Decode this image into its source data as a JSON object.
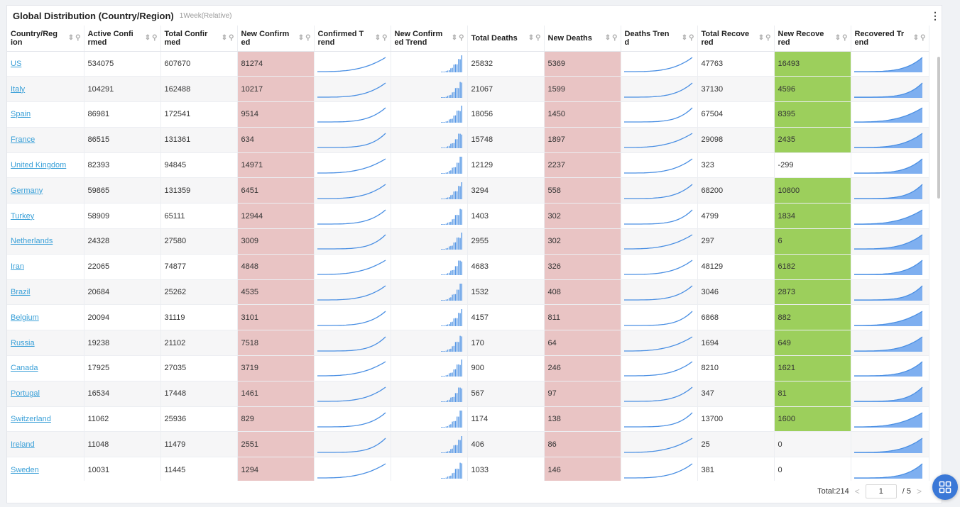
{
  "header": {
    "title": "Global Distribution (Country/Region)",
    "subtitle": "1Week(Relative)",
    "more_icon": "more-vertical-icon",
    "more_glyph": "⋮"
  },
  "icons": {
    "sort": "sort-icon",
    "search": "search-icon",
    "sort_glyph": "⇕",
    "search_glyph": "⚲",
    "grid": "grid-icon"
  },
  "colors": {
    "link": "#3aa0d8",
    "new_highlight": "#e9c4c4",
    "recovered_highlight": "#9ccf5c",
    "trend_line": "#4a8fe3",
    "bar": "#5a9ae6",
    "area_fill": "#7eaff0",
    "fab": "#3a78d7"
  },
  "columns": [
    "Country/Region",
    "Active Confirmed",
    "Total Confirmed",
    "New Confirmed",
    "Confirmed Trend",
    "New Confirmed Trend",
    "Total Deaths",
    "New Deaths",
    "Deaths Trend",
    "Total Recovered",
    "New Recovered",
    "Recovered Trend"
  ],
  "rows": [
    {
      "country": "US",
      "active": "534075",
      "total": "607670",
      "new": "81274",
      "deaths": "25832",
      "new_deaths": "5369",
      "recovered": "47763",
      "new_recovered": "16493",
      "rec_hl": true
    },
    {
      "country": "Italy",
      "active": "104291",
      "total": "162488",
      "new": "10217",
      "deaths": "21067",
      "new_deaths": "1599",
      "recovered": "37130",
      "new_recovered": "4596",
      "rec_hl": true
    },
    {
      "country": "Spain",
      "active": "86981",
      "total": "172541",
      "new": "9514",
      "deaths": "18056",
      "new_deaths": "1450",
      "recovered": "67504",
      "new_recovered": "8395",
      "rec_hl": true
    },
    {
      "country": "France",
      "active": "86515",
      "total": "131361",
      "new": "634",
      "deaths": "15748",
      "new_deaths": "1897",
      "recovered": "29098",
      "new_recovered": "2435",
      "rec_hl": true
    },
    {
      "country": "United Kingdom",
      "active": "82393",
      "total": "94845",
      "new": "14971",
      "deaths": "12129",
      "new_deaths": "2237",
      "recovered": "323",
      "new_recovered": "-299",
      "rec_hl": false
    },
    {
      "country": "Germany",
      "active": "59865",
      "total": "131359",
      "new": "6451",
      "deaths": "3294",
      "new_deaths": "558",
      "recovered": "68200",
      "new_recovered": "10800",
      "rec_hl": true
    },
    {
      "country": "Turkey",
      "active": "58909",
      "total": "65111",
      "new": "12944",
      "deaths": "1403",
      "new_deaths": "302",
      "recovered": "4799",
      "new_recovered": "1834",
      "rec_hl": true
    },
    {
      "country": "Netherlands",
      "active": "24328",
      "total": "27580",
      "new": "3009",
      "deaths": "2955",
      "new_deaths": "302",
      "recovered": "297",
      "new_recovered": "6",
      "rec_hl": true
    },
    {
      "country": "Iran",
      "active": "22065",
      "total": "74877",
      "new": "4848",
      "deaths": "4683",
      "new_deaths": "326",
      "recovered": "48129",
      "new_recovered": "6182",
      "rec_hl": true
    },
    {
      "country": "Brazil",
      "active": "20684",
      "total": "25262",
      "new": "4535",
      "deaths": "1532",
      "new_deaths": "408",
      "recovered": "3046",
      "new_recovered": "2873",
      "rec_hl": true
    },
    {
      "country": "Belgium",
      "active": "20094",
      "total": "31119",
      "new": "3101",
      "deaths": "4157",
      "new_deaths": "811",
      "recovered": "6868",
      "new_recovered": "882",
      "rec_hl": true
    },
    {
      "country": "Russia",
      "active": "19238",
      "total": "21102",
      "new": "7518",
      "deaths": "170",
      "new_deaths": "64",
      "recovered": "1694",
      "new_recovered": "649",
      "rec_hl": true
    },
    {
      "country": "Canada",
      "active": "17925",
      "total": "27035",
      "new": "3719",
      "deaths": "900",
      "new_deaths": "246",
      "recovered": "8210",
      "new_recovered": "1621",
      "rec_hl": true
    },
    {
      "country": "Portugal",
      "active": "16534",
      "total": "17448",
      "new": "1461",
      "deaths": "567",
      "new_deaths": "97",
      "recovered": "347",
      "new_recovered": "81",
      "rec_hl": true
    },
    {
      "country": "Switzerland",
      "active": "11062",
      "total": "25936",
      "new": "829",
      "deaths": "1174",
      "new_deaths": "138",
      "recovered": "13700",
      "new_recovered": "1600",
      "rec_hl": true
    },
    {
      "country": "Ireland",
      "active": "11048",
      "total": "11479",
      "new": "2551",
      "deaths": "406",
      "new_deaths": "86",
      "recovered": "25",
      "new_recovered": "0",
      "rec_hl": false
    },
    {
      "country": "Sweden",
      "active": "10031",
      "total": "11445",
      "new": "1294",
      "deaths": "1033",
      "new_deaths": "146",
      "recovered": "381",
      "new_recovered": "0",
      "rec_hl": false
    }
  ],
  "pagination": {
    "total_label": "Total:214",
    "prev": "<",
    "next": ">",
    "current_page": "1",
    "page_count": "/ 5"
  }
}
